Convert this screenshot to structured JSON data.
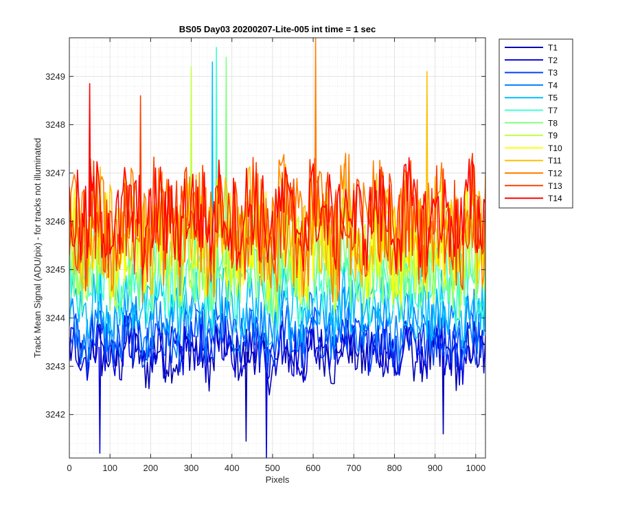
{
  "chart_data": {
    "type": "line",
    "title": "BS05 Day03 20200207-Lite-005 int time = 1 sec",
    "xlabel": "Pixels",
    "ylabel": "Track Mean Signal (ADU/pix) - for tracks not illuminated",
    "xlim": [
      0,
      1024
    ],
    "ylim": [
      3241.1,
      3249.8
    ],
    "xticks": [
      0,
      100,
      200,
      300,
      400,
      500,
      600,
      700,
      800,
      900,
      1000
    ],
    "yticks": [
      3242,
      3243,
      3244,
      3245,
      3246,
      3247,
      3248,
      3249
    ],
    "grid": true,
    "minor_grid": true,
    "legend_position": "outside-right-top",
    "x_step": 4,
    "series": [
      {
        "name": "T1",
        "color": "#0000b0",
        "mean": 3243.3,
        "spread": 0.55,
        "values": [
          3243.4,
          3242.6,
          3243.8,
          3243.1,
          3242.7,
          3243.9,
          3243.2,
          3242.4,
          3243.6,
          3243.0,
          3242.8,
          3243.7,
          3243.3,
          3242.5,
          3244.0,
          3243.1,
          3242.9,
          3243.5,
          3243.2,
          3242.3,
          3243.8,
          3243.0,
          3242.7,
          3243.6,
          3243.4,
          3242.6,
          3243.9,
          3243.1,
          3242.8,
          3243.5,
          3243.3,
          3242.4,
          3243.7,
          3243.0,
          3242.9,
          3243.6,
          3243.2,
          3242.5,
          3243.8,
          3243.1
        ]
      },
      {
        "name": "T2",
        "color": "#0000e0",
        "mean": 3243.4,
        "spread": 0.55,
        "values": [
          3243.5,
          3242.8,
          3243.9,
          3243.2,
          3242.9,
          3243.7,
          3243.4,
          3242.6,
          3243.8,
          3243.1,
          3242.9,
          3243.6,
          3243.5,
          3242.7,
          3244.1,
          3243.2,
          3243.0,
          3243.7,
          3243.3,
          3242.6,
          3243.9,
          3243.1,
          3242.8,
          3243.7,
          3243.5,
          3242.8,
          3244.0,
          3243.2,
          3242.9,
          3243.6,
          3243.4,
          3242.6,
          3243.8,
          3243.1,
          3243.0,
          3243.7,
          3243.3,
          3242.7,
          3243.9,
          3243.2
        ]
      },
      {
        "name": "T3",
        "color": "#0040ff",
        "mean": 3243.6,
        "spread": 0.55,
        "values": [
          3243.7,
          3243.0,
          3244.1,
          3243.4,
          3243.1,
          3243.9,
          3243.6,
          3242.9,
          3244.0,
          3243.3,
          3243.1,
          3243.8,
          3243.7,
          3242.9,
          3244.2,
          3243.4,
          3243.2,
          3243.9,
          3243.5,
          3242.8,
          3244.1,
          3243.3,
          3243.0,
          3243.9,
          3243.7,
          3243.0,
          3244.2,
          3243.4,
          3243.1,
          3243.8,
          3243.6,
          3242.9,
          3244.0,
          3243.3,
          3243.2,
          3243.9,
          3243.5,
          3242.9,
          3244.1,
          3243.4
        ]
      },
      {
        "name": "T4",
        "color": "#0080ff",
        "mean": 3243.9,
        "spread": 0.6,
        "values": [
          3244.0,
          3243.3,
          3244.4,
          3243.7,
          3243.4,
          3244.2,
          3243.9,
          3243.2,
          3244.3,
          3243.6,
          3243.4,
          3244.1,
          3244.0,
          3243.2,
          3244.5,
          3243.7,
          3243.5,
          3244.2,
          3243.8,
          3243.1,
          3244.4,
          3243.6,
          3243.3,
          3244.2,
          3244.0,
          3243.3,
          3244.5,
          3243.7,
          3243.4,
          3244.1,
          3243.9,
          3243.2,
          3244.3,
          3243.6,
          3243.5,
          3244.2,
          3243.8,
          3243.2,
          3244.4,
          3243.7
        ]
      },
      {
        "name": "T5",
        "color": "#00bfff",
        "mean": 3244.3,
        "spread": 0.65,
        "values": [
          3244.4,
          3243.7,
          3244.8,
          3244.1,
          3243.8,
          3244.6,
          3244.3,
          3243.6,
          3244.7,
          3244.0,
          3243.8,
          3244.5,
          3244.4,
          3243.6,
          3244.9,
          3244.1,
          3243.9,
          3244.6,
          3244.2,
          3243.5,
          3244.8,
          3244.0,
          3243.7,
          3244.6,
          3244.4,
          3243.7,
          3244.9,
          3244.1,
          3243.8,
          3244.5,
          3244.3,
          3243.6,
          3244.7,
          3244.0,
          3243.9,
          3244.6,
          3244.2,
          3243.6,
          3244.8,
          3244.1
        ]
      },
      {
        "name": "T7",
        "color": "#40ffd0",
        "mean": 3244.8,
        "spread": 0.8,
        "values": [
          3244.9,
          3244.1,
          3245.4,
          3244.6,
          3244.2,
          3245.2,
          3244.8,
          3244.0,
          3245.3,
          3244.5,
          3244.3,
          3245.1,
          3245.0,
          3244.1,
          3245.6,
          3244.7,
          3244.4,
          3245.3,
          3244.7,
          3244.0,
          3245.5,
          3244.5,
          3244.2,
          3245.2,
          3244.9,
          3244.1,
          3245.5,
          3244.6,
          3244.3,
          3245.1,
          3244.8,
          3244.0,
          3245.3,
          3244.5,
          3244.4,
          3245.2,
          3244.7,
          3244.1,
          3245.4,
          3244.6
        ]
      },
      {
        "name": "T8",
        "color": "#80ff80",
        "mean": 3245.1,
        "spread": 0.9,
        "values": [
          3245.2,
          3244.3,
          3245.8,
          3244.9,
          3244.5,
          3245.6,
          3245.1,
          3244.2,
          3245.7,
          3244.8,
          3244.6,
          3245.5,
          3245.3,
          3244.3,
          3245.9,
          3245.0,
          3244.7,
          3245.7,
          3245.0,
          3244.2,
          3245.8,
          3244.8,
          3244.4,
          3245.6,
          3245.2,
          3244.3,
          3245.9,
          3244.9,
          3244.6,
          3245.5,
          3245.1,
          3244.2,
          3245.7,
          3244.8,
          3244.7,
          3245.6,
          3245.0,
          3244.3,
          3245.8,
          3244.9
        ]
      },
      {
        "name": "T9",
        "color": "#c0ff40",
        "mean": 3245.4,
        "spread": 1.0,
        "values": [
          3245.5,
          3244.5,
          3246.2,
          3245.2,
          3244.7,
          3246.0,
          3245.4,
          3244.4,
          3246.1,
          3245.1,
          3244.8,
          3245.9,
          3245.6,
          3244.5,
          3246.3,
          3245.3,
          3244.9,
          3246.1,
          3245.3,
          3244.4,
          3246.2,
          3245.1,
          3244.6,
          3246.0,
          3245.5,
          3244.5,
          3246.3,
          3245.2,
          3244.8,
          3245.9,
          3245.4,
          3244.4,
          3246.1,
          3245.1,
          3244.9,
          3246.0,
          3245.3,
          3244.5,
          3246.2,
          3245.2
        ]
      },
      {
        "name": "T10",
        "color": "#ffff00",
        "mean": 3245.6,
        "spread": 1.05,
        "values": [
          3245.7,
          3244.7,
          3246.4,
          3245.4,
          3244.9,
          3246.2,
          3245.6,
          3244.6,
          3246.3,
          3245.3,
          3245.0,
          3246.1,
          3245.8,
          3244.7,
          3246.5,
          3245.5,
          3245.1,
          3246.3,
          3245.5,
          3244.6,
          3246.4,
          3245.3,
          3244.8,
          3246.2,
          3245.7,
          3244.7,
          3246.5,
          3245.4,
          3245.0,
          3246.1,
          3245.6,
          3244.6,
          3246.3,
          3245.3,
          3245.1,
          3246.2,
          3245.5,
          3244.7,
          3246.4,
          3245.4
        ]
      },
      {
        "name": "T11",
        "color": "#ffc000",
        "mean": 3245.8,
        "spread": 1.1,
        "values": [
          3245.9,
          3244.8,
          3246.7,
          3245.6,
          3245.0,
          3246.5,
          3245.8,
          3244.7,
          3246.6,
          3245.5,
          3245.1,
          3246.4,
          3246.0,
          3244.8,
          3246.8,
          3245.7,
          3245.2,
          3246.6,
          3245.7,
          3244.7,
          3246.7,
          3245.5,
          3244.9,
          3246.5,
          3245.9,
          3244.8,
          3246.8,
          3245.6,
          3245.1,
          3246.4,
          3245.8,
          3244.7,
          3246.6,
          3245.5,
          3245.2,
          3246.5,
          3245.7,
          3244.8,
          3246.7,
          3245.6
        ]
      },
      {
        "name": "T12",
        "color": "#ff8000",
        "mean": 3245.9,
        "spread": 1.2,
        "values": [
          3246.0,
          3244.8,
          3246.9,
          3245.7,
          3245.0,
          3246.7,
          3245.9,
          3244.7,
          3246.8,
          3245.6,
          3245.1,
          3246.6,
          3246.1,
          3244.8,
          3247.0,
          3245.8,
          3245.2,
          3246.8,
          3245.8,
          3244.7,
          3246.9,
          3245.6,
          3244.9,
          3246.7,
          3246.0,
          3244.8,
          3247.0,
          3245.7,
          3245.1,
          3246.6,
          3245.9,
          3244.7,
          3246.8,
          3245.6,
          3245.2,
          3246.7,
          3245.8,
          3244.8,
          3246.9,
          3245.7
        ]
      },
      {
        "name": "T13",
        "color": "#ff4000",
        "mean": 3246.0,
        "spread": 1.1,
        "values": [
          3246.1,
          3245.0,
          3246.9,
          3245.8,
          3245.2,
          3246.7,
          3246.0,
          3244.9,
          3246.8,
          3245.7,
          3245.3,
          3246.6,
          3246.2,
          3245.0,
          3247.0,
          3245.9,
          3245.4,
          3246.8,
          3245.9,
          3244.9,
          3246.9,
          3245.7,
          3245.1,
          3246.7,
          3246.1,
          3245.0,
          3247.0,
          3245.8,
          3245.3,
          3246.6,
          3246.0,
          3244.9,
          3246.8,
          3245.7,
          3245.4,
          3246.7,
          3245.9,
          3245.0,
          3246.9,
          3245.8
        ]
      },
      {
        "name": "T14",
        "color": "#ff0000",
        "mean": 3246.1,
        "spread": 0.95,
        "values": [
          3246.2,
          3245.3,
          3246.9,
          3245.9,
          3245.4,
          3246.8,
          3246.1,
          3245.2,
          3246.9,
          3245.8,
          3245.5,
          3246.7,
          3246.3,
          3245.3,
          3247.0,
          3246.0,
          3245.6,
          3246.9,
          3246.0,
          3245.2,
          3247.0,
          3245.8,
          3245.4,
          3246.8,
          3246.2,
          3245.3,
          3247.1,
          3245.9,
          3245.5,
          3246.7,
          3246.1,
          3245.2,
          3246.9,
          3245.8,
          3245.6,
          3246.8,
          3246.0,
          3245.3,
          3247.0,
          3245.9
        ]
      }
    ],
    "spikes": [
      {
        "series": "T12",
        "x": 606,
        "y": 3249.8
      },
      {
        "series": "T7",
        "x": 362,
        "y": 3249.6
      },
      {
        "series": "T8",
        "x": 386,
        "y": 3249.4
      },
      {
        "series": "T5",
        "x": 352,
        "y": 3249.3
      },
      {
        "series": "T9",
        "x": 300,
        "y": 3249.2
      },
      {
        "series": "T14",
        "x": 50,
        "y": 3248.85
      },
      {
        "series": "T2",
        "x": 75,
        "y": 3241.2
      },
      {
        "series": "T2",
        "x": 485,
        "y": 3241.1
      },
      {
        "series": "T1",
        "x": 435,
        "y": 3241.45
      },
      {
        "series": "T1",
        "x": 920,
        "y": 3241.6
      },
      {
        "series": "T11",
        "x": 880,
        "y": 3249.1
      },
      {
        "series": "T13",
        "x": 175,
        "y": 3248.6
      }
    ]
  }
}
